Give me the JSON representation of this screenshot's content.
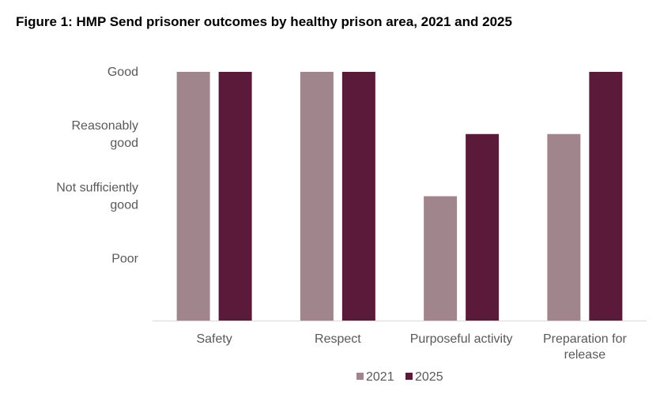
{
  "title": "Figure 1: HMP Send prisoner outcomes by healthy prison area, 2021 and 2025",
  "chart_data": {
    "type": "bar",
    "title": "Figure 1: HMP Send prisoner outcomes by healthy prison area, 2021 and 2025",
    "xlabel": "",
    "ylabel": "",
    "categories": [
      [
        "Safety"
      ],
      [
        "Respect"
      ],
      [
        "Purposeful activity"
      ],
      [
        "Preparation for",
        "release"
      ]
    ],
    "y_levels": [
      {
        "value": 1,
        "label": [
          "Poor"
        ]
      },
      {
        "value": 2,
        "label": [
          "Not sufficiently",
          "good"
        ]
      },
      {
        "value": 3,
        "label": [
          "Reasonably",
          "good"
        ]
      },
      {
        "value": 4,
        "label": [
          "Good"
        ]
      }
    ],
    "ylim": [
      0,
      4
    ],
    "grid": false,
    "legend_position": "bottom",
    "series": [
      {
        "name": "2021",
        "color": "#a0868c",
        "values": [
          4,
          4,
          2,
          3
        ]
      },
      {
        "name": "2025",
        "color": "#5c1a3b",
        "values": [
          4,
          4,
          3,
          4
        ]
      }
    ]
  }
}
